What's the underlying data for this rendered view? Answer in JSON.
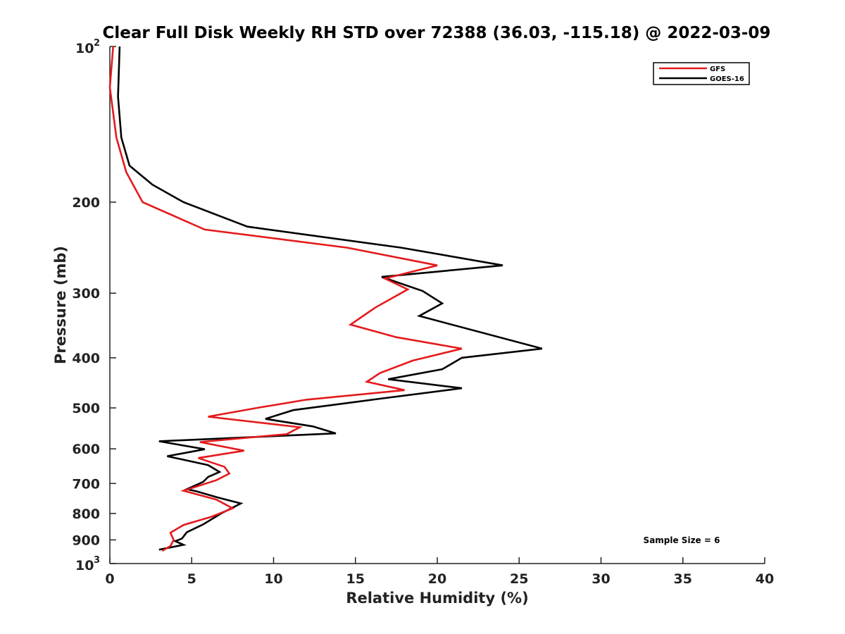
{
  "chart_data": {
    "type": "line",
    "title": "Clear Full Disk Weekly RH STD over 72388 (36.03, -115.18) @ 2022-03-09",
    "xlabel": "Relative Humidity (%)",
    "ylabel": "Pressure (mb)",
    "xlim": [
      0,
      40
    ],
    "ylim": [
      100,
      1000
    ],
    "yscale": "log",
    "y_reversed": true,
    "x_ticks": [
      "0",
      "5",
      "10",
      "15",
      "20",
      "25",
      "30",
      "35",
      "40"
    ],
    "y_ticks": [
      {
        "value": 100,
        "label": "10",
        "sup": "2"
      },
      {
        "value": 200,
        "label": "200"
      },
      {
        "value": 300,
        "label": "300"
      },
      {
        "value": 400,
        "label": "400"
      },
      {
        "value": 500,
        "label": "500"
      },
      {
        "value": 600,
        "label": "600"
      },
      {
        "value": 700,
        "label": "700"
      },
      {
        "value": 800,
        "label": "800"
      },
      {
        "value": 900,
        "label": "900"
      },
      {
        "value": 1000,
        "label": "10",
        "sup": "3"
      }
    ],
    "legend_position": "top-right",
    "grid": false,
    "annotation": "Sample Size = 6",
    "series": [
      {
        "name": "GFS",
        "color": "#e41a1c",
        "points": [
          [
            0.2,
            100
          ],
          [
            0.0,
            120
          ],
          [
            0.4,
            150
          ],
          [
            1.0,
            175
          ],
          [
            2.0,
            200
          ],
          [
            5.8,
            226
          ],
          [
            14.5,
            245
          ],
          [
            20.0,
            265
          ],
          [
            16.8,
            281
          ],
          [
            18.2,
            295
          ],
          [
            16.2,
            320
          ],
          [
            14.7,
            345
          ],
          [
            17.5,
            365
          ],
          [
            21.5,
            384
          ],
          [
            18.5,
            405
          ],
          [
            16.5,
            428
          ],
          [
            15.7,
            445
          ],
          [
            18.0,
            462
          ],
          [
            12.0,
            482
          ],
          [
            9.0,
            500
          ],
          [
            6.0,
            520
          ],
          [
            11.6,
            545
          ],
          [
            10.8,
            562
          ],
          [
            5.5,
            582
          ],
          [
            8.2,
            605
          ],
          [
            5.4,
            625
          ],
          [
            7.0,
            650
          ],
          [
            7.3,
            670
          ],
          [
            6.5,
            690
          ],
          [
            4.5,
            723
          ],
          [
            6.5,
            752
          ],
          [
            7.5,
            782
          ],
          [
            6.2,
            812
          ],
          [
            4.5,
            842
          ],
          [
            3.7,
            872
          ],
          [
            3.9,
            900
          ],
          [
            3.7,
            925
          ],
          [
            3.2,
            945
          ]
        ]
      },
      {
        "name": "GOES-16",
        "color": "#000000",
        "points": [
          [
            0.6,
            100
          ],
          [
            0.5,
            125
          ],
          [
            0.7,
            150
          ],
          [
            1.2,
            170
          ],
          [
            2.6,
            185
          ],
          [
            4.5,
            200
          ],
          [
            8.4,
            223
          ],
          [
            17.8,
            245
          ],
          [
            24.0,
            265
          ],
          [
            16.6,
            279
          ],
          [
            19.1,
            297
          ],
          [
            20.3,
            314
          ],
          [
            18.9,
            332
          ],
          [
            26.4,
            384
          ],
          [
            21.5,
            400
          ],
          [
            20.3,
            421
          ],
          [
            17.0,
            440
          ],
          [
            21.5,
            458
          ],
          [
            16.5,
            480
          ],
          [
            11.2,
            505
          ],
          [
            9.5,
            525
          ],
          [
            12.4,
            543
          ],
          [
            13.8,
            560
          ],
          [
            3.0,
            580
          ],
          [
            5.8,
            601
          ],
          [
            3.5,
            620
          ],
          [
            6.0,
            645
          ],
          [
            6.7,
            665
          ],
          [
            6.0,
            680
          ],
          [
            5.7,
            695
          ],
          [
            4.7,
            718
          ],
          [
            5.3,
            725
          ],
          [
            6.6,
            745
          ],
          [
            8.0,
            765
          ],
          [
            6.8,
            800
          ],
          [
            5.7,
            840
          ],
          [
            4.7,
            870
          ],
          [
            4.4,
            895
          ],
          [
            4.0,
            905
          ],
          [
            4.5,
            920
          ],
          [
            3.0,
            940
          ]
        ]
      }
    ]
  }
}
